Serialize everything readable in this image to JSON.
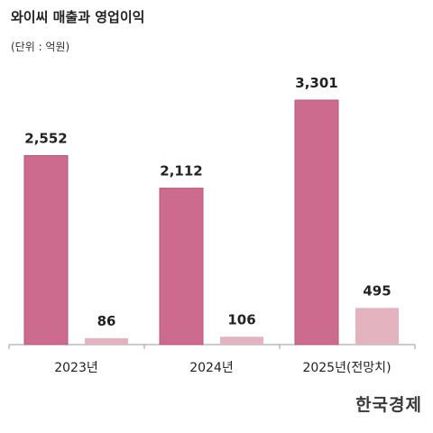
{
  "header": {
    "title": "와이씨 매출과 영업이익",
    "unit": "(단위 : 억원)"
  },
  "logo": "한국경제",
  "colors": {
    "revenue": "#cc6b8d",
    "revenue_border": "#b85579",
    "operating_profit": "#e4b3c0",
    "axis": "#999999",
    "label": "#222222"
  },
  "chart_data": {
    "type": "bar",
    "title": "와이씨 매출과 영업이익",
    "unit": "(단위 : 억원)",
    "categories": [
      "2023년",
      "2024년",
      "2025년(전망치)"
    ],
    "series": [
      {
        "values": [
          2552,
          2112,
          3301
        ],
        "labels": [
          "2,552",
          "2,112",
          "3,301"
        ]
      },
      {
        "values": [
          86,
          106,
          495
        ],
        "labels": [
          "86",
          "106",
          "495"
        ]
      }
    ],
    "ylim": [
      0,
      3301
    ],
    "grid": false,
    "legend": "none"
  }
}
